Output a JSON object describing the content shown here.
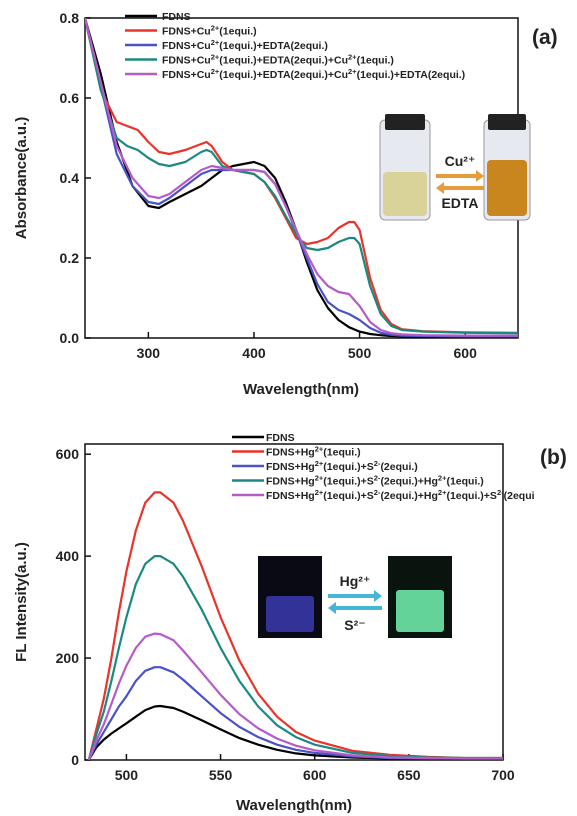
{
  "charts": [
    {
      "panel_label": "(a)",
      "type": "line",
      "xlabel": "Wavelength(nm)",
      "ylabel": "Absorbance(a.u.)",
      "xlim": [
        240,
        650
      ],
      "ylim": [
        0,
        0.8
      ],
      "xticks": [
        300,
        400,
        500,
        600
      ],
      "yticks": [
        0.0,
        0.2,
        0.4,
        0.6,
        0.8
      ],
      "ytick_labels": [
        "0.0",
        "0.2",
        "0.4",
        "0.6",
        "0.8"
      ],
      "legend_position": "top-right",
      "inset": {
        "arrow_top_label": "Cu²⁺",
        "arrow_bottom_label": "EDTA",
        "left_vial_color": "#d9d39a",
        "right_vial_color": "#c9861f"
      },
      "series": [
        {
          "legend_text": [
            "FDNS"
          ],
          "color": "#000000",
          "x": [
            240,
            255,
            270,
            285,
            300,
            310,
            320,
            335,
            350,
            360,
            370,
            380,
            390,
            400,
            410,
            420,
            430,
            440,
            450,
            460,
            470,
            480,
            490,
            500,
            510,
            520,
            530,
            540,
            560,
            600,
            650
          ],
          "y": [
            0.8,
            0.66,
            0.49,
            0.38,
            0.33,
            0.325,
            0.34,
            0.36,
            0.38,
            0.4,
            0.42,
            0.43,
            0.435,
            0.44,
            0.43,
            0.4,
            0.34,
            0.27,
            0.19,
            0.12,
            0.075,
            0.045,
            0.027,
            0.016,
            0.01,
            0.007,
            0.005,
            0.004,
            0.003,
            0.002,
            0.002
          ]
        },
        {
          "legend_text": [
            "FDNS+Cu",
            "2+",
            "(1equi.)"
          ],
          "color": "#e8342a",
          "x": [
            240,
            255,
            270,
            280,
            290,
            300,
            310,
            320,
            335,
            350,
            355,
            360,
            370,
            380,
            390,
            400,
            410,
            420,
            430,
            440,
            450,
            460,
            470,
            480,
            490,
            495,
            500,
            510,
            520,
            530,
            540,
            560,
            600,
            650
          ],
          "y": [
            0.8,
            0.62,
            0.54,
            0.53,
            0.52,
            0.49,
            0.465,
            0.46,
            0.47,
            0.485,
            0.49,
            0.48,
            0.44,
            0.42,
            0.415,
            0.41,
            0.39,
            0.35,
            0.3,
            0.25,
            0.235,
            0.24,
            0.25,
            0.275,
            0.29,
            0.29,
            0.27,
            0.15,
            0.07,
            0.035,
            0.022,
            0.017,
            0.014,
            0.013
          ]
        },
        {
          "legend_text": [
            "FDNS+Cu",
            "2+",
            "(1equi.)+EDTA(2equi.)"
          ],
          "color": "#4a52c7",
          "x": [
            240,
            255,
            270,
            285,
            300,
            310,
            320,
            335,
            350,
            360,
            370,
            380,
            390,
            400,
            410,
            420,
            430,
            440,
            450,
            460,
            470,
            480,
            490,
            500,
            510,
            520,
            530,
            540,
            560,
            600,
            650
          ],
          "y": [
            0.8,
            0.63,
            0.46,
            0.38,
            0.34,
            0.335,
            0.35,
            0.38,
            0.41,
            0.42,
            0.42,
            0.42,
            0.42,
            0.42,
            0.415,
            0.385,
            0.33,
            0.265,
            0.2,
            0.135,
            0.09,
            0.07,
            0.06,
            0.045,
            0.025,
            0.013,
            0.008,
            0.006,
            0.005,
            0.004,
            0.004
          ]
        },
        {
          "legend_text": [
            "FDNS+Cu",
            "2+",
            "(1equi.)+EDTA(2equi.)+Cu",
            "2+",
            "(1equi.)"
          ],
          "color": "#1a8a80",
          "x": [
            240,
            255,
            270,
            280,
            290,
            300,
            310,
            320,
            335,
            350,
            355,
            360,
            370,
            380,
            390,
            400,
            410,
            420,
            430,
            440,
            450,
            460,
            470,
            480,
            490,
            495,
            500,
            510,
            520,
            530,
            540,
            560,
            600,
            650
          ],
          "y": [
            0.8,
            0.62,
            0.5,
            0.48,
            0.47,
            0.45,
            0.435,
            0.43,
            0.44,
            0.465,
            0.47,
            0.465,
            0.43,
            0.42,
            0.415,
            0.41,
            0.39,
            0.355,
            0.305,
            0.26,
            0.225,
            0.22,
            0.225,
            0.24,
            0.25,
            0.25,
            0.235,
            0.13,
            0.06,
            0.03,
            0.02,
            0.016,
            0.013,
            0.012
          ]
        },
        {
          "legend_text": [
            "FDNS+Cu",
            "2+",
            "(1equi.)+EDTA(2equi.)+Cu",
            "2+",
            "(1equi.)+EDTA(2equi.)"
          ],
          "color": "#b55cc8",
          "x": [
            240,
            255,
            270,
            285,
            300,
            310,
            320,
            335,
            350,
            360,
            370,
            380,
            390,
            400,
            410,
            420,
            430,
            440,
            450,
            460,
            470,
            480,
            490,
            500,
            510,
            520,
            530,
            540,
            560,
            600,
            650
          ],
          "y": [
            0.8,
            0.64,
            0.48,
            0.4,
            0.355,
            0.35,
            0.36,
            0.39,
            0.42,
            0.43,
            0.425,
            0.42,
            0.42,
            0.42,
            0.415,
            0.385,
            0.33,
            0.27,
            0.21,
            0.16,
            0.13,
            0.115,
            0.11,
            0.08,
            0.04,
            0.02,
            0.012,
            0.009,
            0.007,
            0.006,
            0.006
          ]
        }
      ]
    },
    {
      "panel_label": "(b)",
      "type": "line",
      "xlabel": "Wavelength(nm)",
      "ylabel": "FL Intensity(a.u.)",
      "xlim": [
        478,
        700
      ],
      "ylim": [
        0,
        620
      ],
      "xticks": [
        500,
        550,
        600,
        650,
        700
      ],
      "yticks": [
        0,
        200,
        400,
        600
      ],
      "ytick_labels": [
        "0",
        "200",
        "400",
        "600"
      ],
      "legend_position": "top-right",
      "inset": {
        "arrow_top_label": "Hg²⁺",
        "arrow_bottom_label": "S²⁻",
        "left_vial_color": "#3a3ab0",
        "right_vial_color": "#6ee8a8"
      },
      "series": [
        {
          "legend_text": [
            "FDNS"
          ],
          "color": "#000000",
          "x": [
            480,
            484,
            488,
            492,
            496,
            500,
            505,
            510,
            515,
            518,
            525,
            530,
            540,
            550,
            560,
            570,
            580,
            590,
            600,
            620,
            640,
            660,
            680,
            700
          ],
          "y": [
            0,
            25,
            40,
            52,
            62,
            72,
            85,
            98,
            105,
            106,
            102,
            95,
            78,
            60,
            43,
            30,
            20,
            13,
            9,
            5,
            3,
            2,
            2,
            2
          ]
        },
        {
          "legend_text": [
            "FDNS+Hg",
            "2+",
            "(1equi.)"
          ],
          "color": "#e8342a",
          "x": [
            480,
            484,
            488,
            492,
            496,
            500,
            505,
            510,
            515,
            518,
            525,
            530,
            540,
            550,
            560,
            570,
            580,
            590,
            600,
            620,
            640,
            660,
            680,
            700
          ],
          "y": [
            0,
            60,
            120,
            200,
            290,
            370,
            450,
            505,
            525,
            525,
            505,
            470,
            380,
            280,
            195,
            130,
            85,
            55,
            38,
            18,
            10,
            6,
            4,
            4
          ]
        },
        {
          "legend_text": [
            "FDNS+Hg",
            "2+",
            "(1equi.)+S",
            "2-",
            "(2equi.)"
          ],
          "color": "#4a52c7",
          "x": [
            480,
            484,
            488,
            492,
            496,
            500,
            505,
            510,
            515,
            518,
            525,
            530,
            540,
            550,
            560,
            570,
            580,
            590,
            600,
            620,
            640,
            660,
            680,
            700
          ],
          "y": [
            0,
            30,
            55,
            80,
            105,
            125,
            155,
            175,
            182,
            182,
            172,
            158,
            125,
            92,
            65,
            45,
            30,
            20,
            14,
            7,
            4,
            3,
            3,
            3
          ]
        },
        {
          "legend_text": [
            "FDNS+Hg",
            "2+",
            "(1equi.)+S",
            "2-",
            "(2equi.)+Hg",
            "2+",
            "(1equi.)"
          ],
          "color": "#1a8a80",
          "x": [
            480,
            484,
            488,
            492,
            496,
            500,
            505,
            510,
            515,
            518,
            525,
            530,
            540,
            550,
            560,
            570,
            580,
            590,
            600,
            620,
            640,
            660,
            680,
            700
          ],
          "y": [
            0,
            50,
            95,
            155,
            220,
            280,
            345,
            385,
            400,
            400,
            385,
            360,
            295,
            220,
            155,
            105,
            68,
            45,
            30,
            14,
            8,
            5,
            4,
            4
          ]
        },
        {
          "legend_text": [
            "FDNS+Hg",
            "2+",
            "(1equi.)+S",
            "2-",
            "(2equi.)+Hg",
            "2+",
            "(1equi.)+S",
            "2-",
            "(2equi"
          ],
          "color": "#b55cc8",
          "x": [
            480,
            484,
            488,
            492,
            496,
            500,
            505,
            510,
            515,
            518,
            525,
            530,
            540,
            550,
            560,
            570,
            580,
            590,
            600,
            620,
            640,
            660,
            680,
            700
          ],
          "y": [
            0,
            38,
            70,
            110,
            150,
            185,
            220,
            242,
            248,
            247,
            235,
            215,
            172,
            128,
            90,
            62,
            42,
            28,
            19,
            9,
            5,
            4,
            3,
            3
          ]
        }
      ]
    }
  ]
}
